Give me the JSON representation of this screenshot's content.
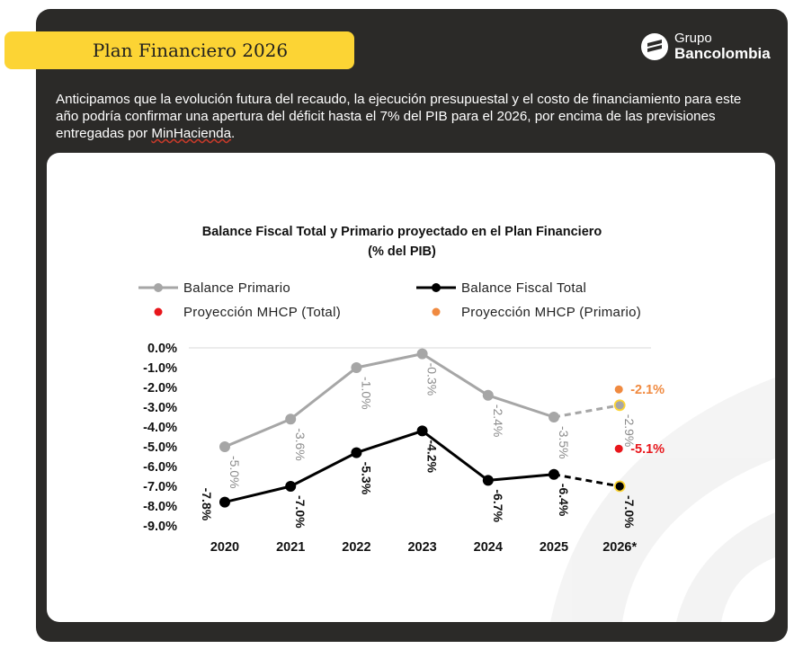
{
  "header": {
    "title": "Plan Financiero 2026",
    "logo_line1": "Grupo",
    "logo_line2": "Bancolombia"
  },
  "intro": {
    "text_before": "Anticipamos que la evolución futura del recaudo, la ejecución presupuestal y el costo de financiamiento para este año podría confirmar una apertura del déficit hasta el 7% del PIB para el 2026, por encima de las previsiones entregadas por ",
    "link": "MinHacienda",
    "text_after": "."
  },
  "colors": {
    "panel_bg": "#2b2a28",
    "title_bg": "#fcd434",
    "primario": "#a6a6a6",
    "total": "#000000",
    "mhcp_total": "#e8161b",
    "mhcp_primario": "#f08a40",
    "highlight": "#fcd434"
  },
  "chart_data": {
    "type": "line",
    "title": "Balance Fiscal Total y Primario proyectado en el Plan Financiero",
    "subtitle": "(% del PIB)",
    "categories": [
      "2020",
      "2021",
      "2022",
      "2023",
      "2024",
      "2025",
      "2026*"
    ],
    "ylim": [
      -9.0,
      0.0
    ],
    "yticks": [
      "0.0%",
      "-1.0%",
      "-2.0%",
      "-3.0%",
      "-4.0%",
      "-5.0%",
      "-6.0%",
      "-7.0%",
      "-8.0%",
      "-9.0%"
    ],
    "legend": [
      {
        "name": "Balance Primario",
        "kind": "line",
        "color": "#a6a6a6"
      },
      {
        "name": "Balance Fiscal Total",
        "kind": "line",
        "color": "#000000"
      },
      {
        "name": "Proyección MHCP (Total)",
        "kind": "dot",
        "color": "#e8161b"
      },
      {
        "name": "Proyección MHCP (Primario)",
        "kind": "dot",
        "color": "#f08a40"
      }
    ],
    "series": [
      {
        "name": "Balance Primario",
        "values": [
          -5.0,
          -3.6,
          -1.0,
          -0.3,
          -2.4,
          -3.5,
          -2.9
        ],
        "labels": [
          "-5.0%",
          "-3.6%",
          "-1.0%",
          "-0.3%",
          "-2.4%",
          "-3.5%",
          "-2.9%"
        ]
      },
      {
        "name": "Balance Fiscal Total",
        "values": [
          -7.8,
          -7.0,
          -5.3,
          -4.2,
          -6.7,
          -6.4,
          -7.0
        ],
        "labels": [
          "-7.8%",
          "-7.0%",
          "-5.3%",
          "-4.2%",
          "-6.7%",
          "-6.4%",
          "-7.0%"
        ]
      }
    ],
    "projections": [
      {
        "name": "Proyección MHCP (Primario)",
        "category": "2026*",
        "value": -2.1,
        "label": "-2.1%"
      },
      {
        "name": "Proyección MHCP (Total)",
        "category": "2026*",
        "value": -5.1,
        "label": "-5.1%"
      }
    ],
    "projection_style": "last segment dashed"
  }
}
